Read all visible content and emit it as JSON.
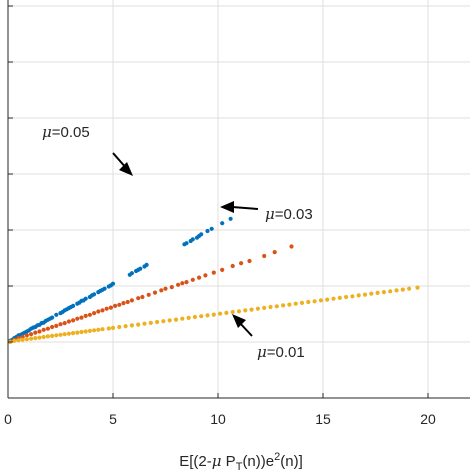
{
  "chart_data": {
    "type": "scatter",
    "xlabel": "E[(2-μ P_T(n))e^2(n)]",
    "xlim": [
      0,
      22
    ],
    "xticks": [
      "0",
      "5",
      "10",
      "15",
      "20"
    ],
    "y_tick_labels_visible": false,
    "grid": true,
    "origin_y": 0,
    "series": [
      {
        "name": "μ=0.05",
        "color": "#0072bd",
        "points": [
          [
            0.1,
            0.1
          ],
          [
            0.2,
            0.2
          ],
          [
            0.3,
            0.35
          ],
          [
            0.4,
            0.45
          ],
          [
            0.5,
            0.6
          ],
          [
            0.6,
            0.65
          ],
          [
            0.7,
            0.75
          ],
          [
            0.8,
            0.85
          ],
          [
            0.9,
            0.95
          ],
          [
            1.0,
            1.05
          ],
          [
            1.1,
            1.2
          ],
          [
            1.2,
            1.3
          ],
          [
            1.3,
            1.35
          ],
          [
            1.4,
            1.5
          ],
          [
            1.5,
            1.55
          ],
          [
            1.6,
            1.7
          ],
          [
            1.7,
            1.75
          ],
          [
            1.8,
            1.9
          ],
          [
            1.9,
            2.0
          ],
          [
            2.0,
            2.1
          ],
          [
            2.1,
            2.2
          ],
          [
            2.3,
            2.45
          ],
          [
            2.5,
            2.6
          ],
          [
            2.6,
            2.7
          ],
          [
            2.7,
            2.85
          ],
          [
            2.8,
            2.95
          ],
          [
            2.9,
            3.05
          ],
          [
            3.0,
            3.15
          ],
          [
            3.1,
            3.25
          ],
          [
            3.3,
            3.45
          ],
          [
            3.4,
            3.55
          ],
          [
            3.5,
            3.7
          ],
          [
            3.6,
            3.75
          ],
          [
            3.7,
            3.9
          ],
          [
            3.9,
            4.05
          ],
          [
            4.0,
            4.2
          ],
          [
            4.1,
            4.3
          ],
          [
            4.3,
            4.5
          ],
          [
            4.4,
            4.6
          ],
          [
            4.5,
            4.7
          ],
          [
            4.6,
            4.8
          ],
          [
            4.8,
            5.0
          ],
          [
            4.9,
            5.1
          ],
          [
            5.0,
            5.25
          ],
          [
            5.8,
            6.05
          ],
          [
            5.9,
            6.2
          ],
          [
            6.1,
            6.4
          ],
          [
            6.2,
            6.5
          ],
          [
            6.3,
            6.6
          ],
          [
            6.5,
            6.8
          ],
          [
            6.6,
            6.95
          ],
          [
            8.4,
            8.8
          ],
          [
            8.5,
            8.9
          ],
          [
            8.7,
            9.1
          ],
          [
            8.8,
            9.25
          ],
          [
            9.0,
            9.4
          ],
          [
            9.1,
            9.55
          ],
          [
            9.2,
            9.7
          ],
          [
            9.5,
            10.0
          ],
          [
            9.7,
            10.2
          ],
          [
            10.2,
            10.7
          ],
          [
            10.6,
            11.1
          ]
        ]
      },
      {
        "name": "μ=0.03",
        "color": "#d95319",
        "points": [
          [
            0.1,
            0.05
          ],
          [
            0.3,
            0.2
          ],
          [
            0.5,
            0.35
          ],
          [
            0.7,
            0.45
          ],
          [
            0.9,
            0.6
          ],
          [
            1.1,
            0.7
          ],
          [
            1.3,
            0.85
          ],
          [
            1.5,
            0.95
          ],
          [
            1.7,
            1.1
          ],
          [
            1.9,
            1.2
          ],
          [
            2.1,
            1.35
          ],
          [
            2.3,
            1.45
          ],
          [
            2.5,
            1.6
          ],
          [
            2.7,
            1.7
          ],
          [
            2.9,
            1.85
          ],
          [
            3.1,
            1.95
          ],
          [
            3.3,
            2.1
          ],
          [
            3.5,
            2.2
          ],
          [
            3.7,
            2.35
          ],
          [
            3.9,
            2.45
          ],
          [
            4.1,
            2.6
          ],
          [
            4.3,
            2.75
          ],
          [
            4.5,
            2.85
          ],
          [
            4.7,
            3.0
          ],
          [
            4.9,
            3.1
          ],
          [
            5.1,
            3.25
          ],
          [
            5.3,
            3.35
          ],
          [
            5.5,
            3.5
          ],
          [
            5.7,
            3.6
          ],
          [
            5.9,
            3.75
          ],
          [
            6.2,
            3.95
          ],
          [
            6.4,
            4.05
          ],
          [
            6.7,
            4.25
          ],
          [
            7.0,
            4.45
          ],
          [
            7.3,
            4.65
          ],
          [
            7.5,
            4.8
          ],
          [
            7.8,
            4.95
          ],
          [
            8.1,
            5.15
          ],
          [
            8.3,
            5.3
          ],
          [
            8.5,
            5.4
          ],
          [
            8.8,
            5.6
          ],
          [
            9.1,
            5.8
          ],
          [
            9.4,
            6.0
          ],
          [
            9.8,
            6.25
          ],
          [
            10.2,
            6.5
          ],
          [
            10.7,
            6.85
          ],
          [
            11.1,
            7.1
          ],
          [
            11.5,
            7.3
          ],
          [
            12.2,
            7.75
          ],
          [
            12.7,
            8.1
          ],
          [
            13.5,
            8.6
          ]
        ]
      },
      {
        "name": "μ=0.01",
        "color": "#edb120",
        "points": [
          [
            0.1,
            0.0
          ],
          [
            0.3,
            0.1
          ],
          [
            0.5,
            0.15
          ],
          [
            0.7,
            0.2
          ],
          [
            0.9,
            0.25
          ],
          [
            1.1,
            0.3
          ],
          [
            1.3,
            0.35
          ],
          [
            1.5,
            0.4
          ],
          [
            1.7,
            0.45
          ],
          [
            1.9,
            0.5
          ],
          [
            2.1,
            0.55
          ],
          [
            2.3,
            0.6
          ],
          [
            2.5,
            0.65
          ],
          [
            2.7,
            0.7
          ],
          [
            2.9,
            0.75
          ],
          [
            3.1,
            0.8
          ],
          [
            3.3,
            0.85
          ],
          [
            3.5,
            0.9
          ],
          [
            3.7,
            0.95
          ],
          [
            3.9,
            1.0
          ],
          [
            4.1,
            1.05
          ],
          [
            4.3,
            1.1
          ],
          [
            4.5,
            1.15
          ],
          [
            4.8,
            1.22
          ],
          [
            5.0,
            1.27
          ],
          [
            5.3,
            1.35
          ],
          [
            5.6,
            1.42
          ],
          [
            5.9,
            1.5
          ],
          [
            6.2,
            1.57
          ],
          [
            6.5,
            1.65
          ],
          [
            6.8,
            1.72
          ],
          [
            7.1,
            1.8
          ],
          [
            7.4,
            1.87
          ],
          [
            7.7,
            1.95
          ],
          [
            8.0,
            2.02
          ],
          [
            8.3,
            2.1
          ],
          [
            8.6,
            2.17
          ],
          [
            8.9,
            2.25
          ],
          [
            9.2,
            2.32
          ],
          [
            9.5,
            2.4
          ],
          [
            9.8,
            2.47
          ],
          [
            10.1,
            2.55
          ],
          [
            10.4,
            2.62
          ],
          [
            10.7,
            2.7
          ],
          [
            11.0,
            2.77
          ],
          [
            11.3,
            2.85
          ],
          [
            11.6,
            2.92
          ],
          [
            11.9,
            3.0
          ],
          [
            12.2,
            3.07
          ],
          [
            12.5,
            3.15
          ],
          [
            12.8,
            3.22
          ],
          [
            13.1,
            3.3
          ],
          [
            13.4,
            3.37
          ],
          [
            13.7,
            3.45
          ],
          [
            14.0,
            3.52
          ],
          [
            14.3,
            3.6
          ],
          [
            14.6,
            3.67
          ],
          [
            14.9,
            3.75
          ],
          [
            15.2,
            3.82
          ],
          [
            15.5,
            3.9
          ],
          [
            15.8,
            3.97
          ],
          [
            16.1,
            4.05
          ],
          [
            16.4,
            4.12
          ],
          [
            16.7,
            4.2
          ],
          [
            17.0,
            4.27
          ],
          [
            17.3,
            4.35
          ],
          [
            17.6,
            4.42
          ],
          [
            17.9,
            4.5
          ],
          [
            18.2,
            4.57
          ],
          [
            18.5,
            4.65
          ],
          [
            18.8,
            4.72
          ],
          [
            19.1,
            4.8
          ],
          [
            19.5,
            4.9
          ]
        ]
      }
    ],
    "annotations": [
      {
        "mu": "μ",
        "text": "=0.05"
      },
      {
        "mu": "μ",
        "text": "=0.03"
      },
      {
        "mu": "μ",
        "text": "=0.01"
      }
    ]
  },
  "colors": {
    "axis": "#262626",
    "grid": "#dfdfdf"
  }
}
